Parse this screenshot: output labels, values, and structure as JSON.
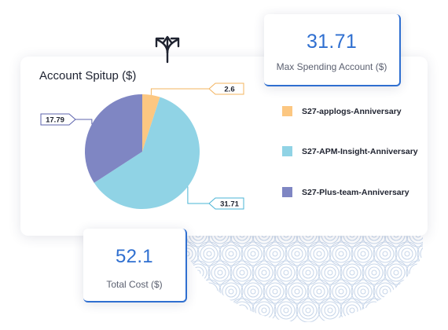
{
  "title": "Account Spitup ($)",
  "max_card": {
    "value": "31.71",
    "label": "Max Spending Account ($)"
  },
  "total_card": {
    "value": "52.1",
    "label": "Total Cost ($)"
  },
  "icons": {
    "split": "split-arrows-icon"
  },
  "chart_data": {
    "type": "pie",
    "title": "Account Spitup ($)",
    "categories": [
      "S27-applogs-Anniversary",
      "S27-APM-Insight-Anniversary",
      "S27-Plus-team-Anniversary"
    ],
    "values": [
      2.6,
      31.71,
      17.79
    ],
    "labels": [
      "2.6",
      "31.71",
      "17.79"
    ],
    "colors": [
      "#fcc781",
      "#90d3e5",
      "#7f86c3"
    ],
    "legend_position": "right"
  }
}
